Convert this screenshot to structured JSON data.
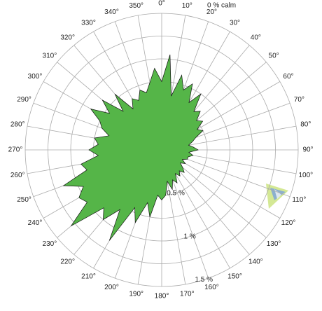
{
  "chart_data": {
    "type": "windrose",
    "annotation": "0 % calm",
    "angles": [
      0,
      5,
      10,
      15,
      20,
      25,
      30,
      35,
      40,
      45,
      50,
      55,
      60,
      65,
      70,
      75,
      80,
      85,
      90,
      95,
      100,
      105,
      110,
      115,
      120,
      125,
      130,
      135,
      140,
      145,
      150,
      155,
      160,
      165,
      170,
      175,
      180,
      185,
      190,
      195,
      200,
      205,
      210,
      215,
      220,
      225,
      230,
      235,
      240,
      245,
      250,
      255,
      260,
      265,
      270,
      275,
      280,
      285,
      290,
      295,
      300,
      305,
      310,
      315,
      320,
      325,
      330,
      335,
      340,
      345,
      350,
      355
    ],
    "values": [
      0.75,
      1.05,
      0.6,
      0.85,
      0.7,
      0.8,
      0.6,
      0.75,
      0.55,
      0.6,
      0.5,
      0.55,
      0.45,
      0.5,
      0.4,
      0.35,
      0.3,
      0.35,
      0.4,
      0.3,
      0.35,
      0.3,
      0.3,
      0.25,
      0.3,
      0.25,
      0.3,
      0.35,
      0.3,
      0.35,
      0.3,
      0.4,
      0.35,
      0.45,
      0.35,
      0.5,
      0.55,
      0.5,
      0.75,
      0.6,
      0.85,
      0.7,
      1.15,
      0.8,
      1.0,
      0.9,
      1.3,
      1.0,
      1.05,
      0.95,
      1.15,
      0.85,
      0.9,
      0.7,
      0.8,
      0.7,
      0.75,
      0.6,
      0.7,
      0.75,
      0.9,
      0.7,
      0.85,
      0.6,
      0.8,
      0.55,
      0.65,
      0.6,
      0.7,
      0.65,
      0.75,
      0.9
    ],
    "color": "#55b548",
    "rlim": [
      0,
      1.5
    ],
    "rticks": [
      {
        "value": 0.5,
        "label": "0.5 %"
      },
      {
        "value": 1,
        "label": "1 %"
      },
      {
        "value": 1.5,
        "label": "1.5 %"
      }
    ],
    "rminorticks": [
      0.25,
      0.75,
      1.25
    ],
    "xticks": [
      {
        "value": 0,
        "label": "0°"
      },
      {
        "value": 10,
        "label": "10°"
      },
      {
        "value": 20,
        "label": "20°"
      },
      {
        "value": 30,
        "label": "30°"
      },
      {
        "value": 40,
        "label": "40°"
      },
      {
        "value": 50,
        "label": "50°"
      },
      {
        "value": 60,
        "label": "60°"
      },
      {
        "value": 70,
        "label": "70°"
      },
      {
        "value": 80,
        "label": "80°"
      },
      {
        "value": 90,
        "label": "90°"
      },
      {
        "value": 100,
        "label": "100°"
      },
      {
        "value": 110,
        "label": "110°"
      },
      {
        "value": 120,
        "label": "120°"
      },
      {
        "value": 130,
        "label": "130°"
      },
      {
        "value": 140,
        "label": "140°"
      },
      {
        "value": 150,
        "label": "150°"
      },
      {
        "value": 160,
        "label": "160°"
      },
      {
        "value": 170,
        "label": "170°"
      },
      {
        "value": 180,
        "label": "180°"
      },
      {
        "value": 190,
        "label": "190°"
      },
      {
        "value": 200,
        "label": "200°"
      },
      {
        "value": 210,
        "label": "210°"
      },
      {
        "value": 220,
        "label": "220°"
      },
      {
        "value": 230,
        "label": "230°"
      },
      {
        "value": 240,
        "label": "240°"
      },
      {
        "value": 250,
        "label": "250°"
      },
      {
        "value": 260,
        "label": "260°"
      },
      {
        "value": 270,
        "label": "270°"
      },
      {
        "value": 280,
        "label": "280°"
      },
      {
        "value": 290,
        "label": "290°"
      },
      {
        "value": 300,
        "label": "300°"
      },
      {
        "value": 310,
        "label": "310°"
      },
      {
        "value": 320,
        "label": "320°"
      },
      {
        "value": 330,
        "label": "330°"
      },
      {
        "value": 340,
        "label": "340°"
      },
      {
        "value": 350,
        "label": "350°"
      }
    ]
  }
}
